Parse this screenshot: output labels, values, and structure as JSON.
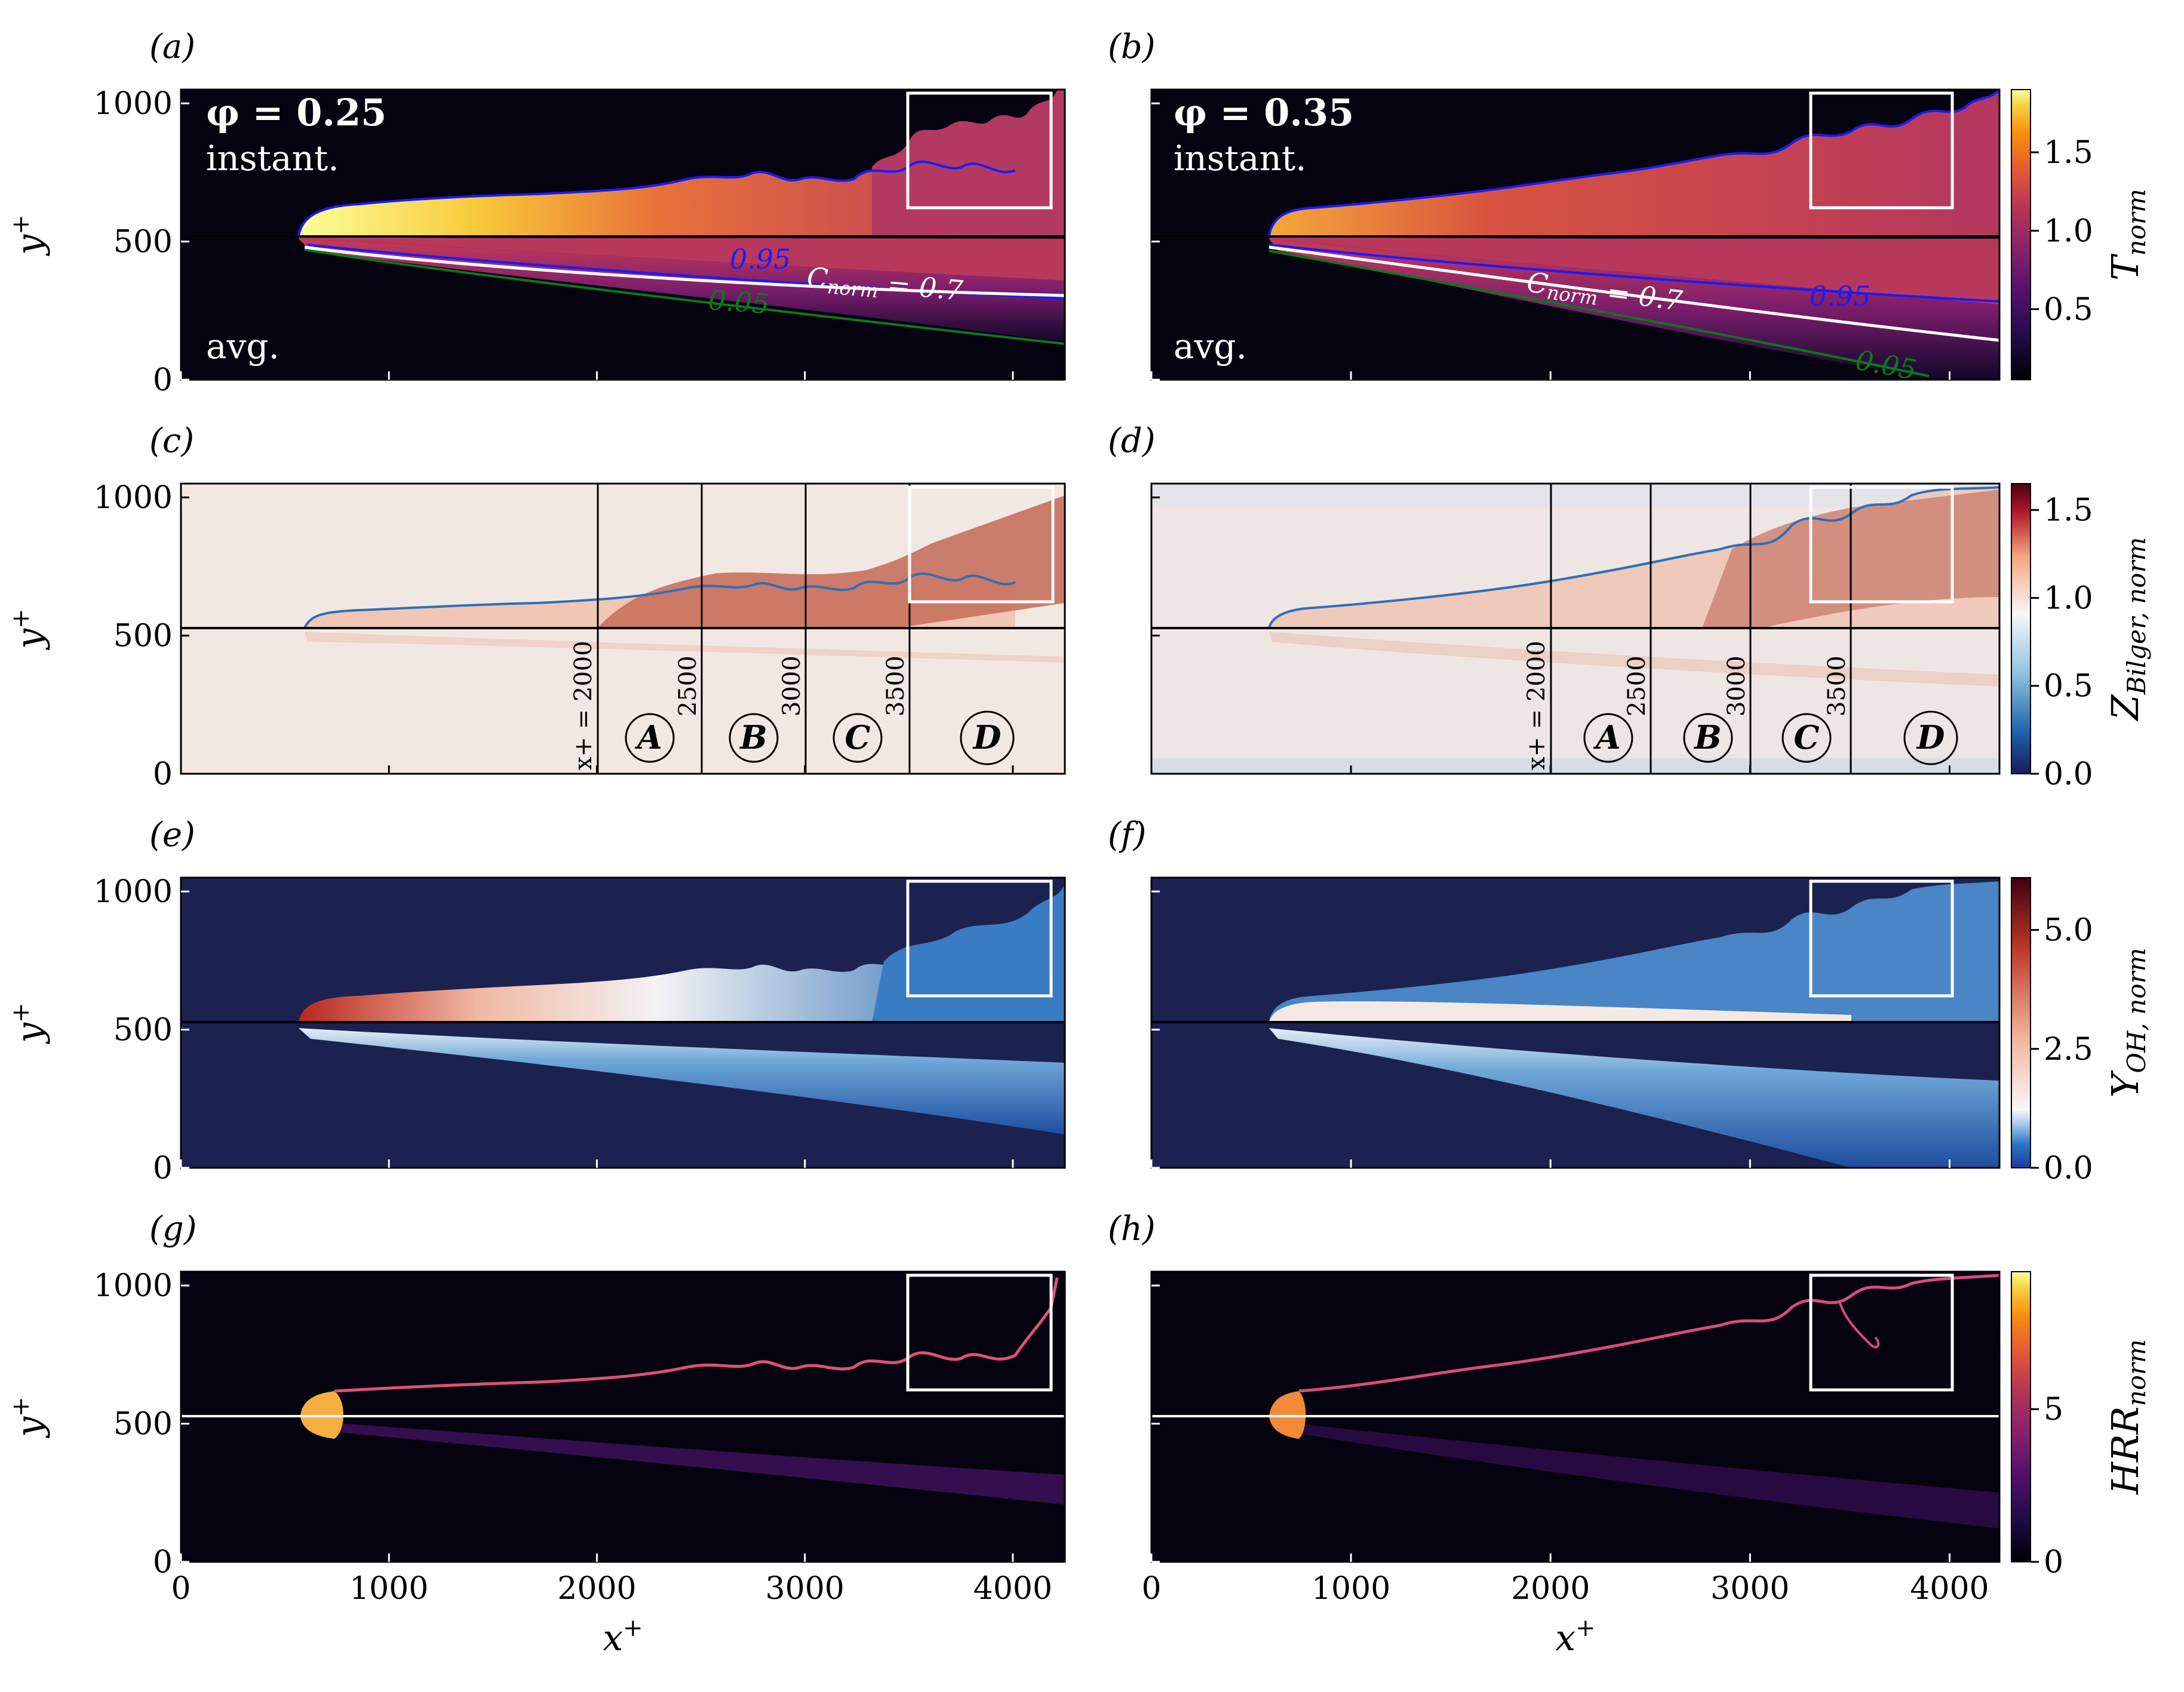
{
  "chart_data": [
    {
      "type": "heatmap",
      "panel": "(a)",
      "annotations": [
        "φ = 0.25",
        "instant.",
        "avg.",
        "0.95",
        "0.05",
        "C_norm = 0.7"
      ],
      "x": {
        "ticks": [
          0,
          1000,
          2000,
          3000,
          4000
        ],
        "lim": [
          0,
          4250
        ]
      },
      "y": {
        "ticks": [
          0,
          500,
          1000
        ],
        "lim": [
          0,
          1050
        ]
      },
      "ylabel": "y+"
    },
    {
      "type": "heatmap",
      "panel": "(b)",
      "annotations": [
        "φ = 0.35",
        "instant.",
        "avg.",
        "C_norm = 0.7",
        "0.95",
        "0.05"
      ],
      "x": {
        "ticks": [
          0,
          1000,
          2000,
          3000,
          4000
        ],
        "lim": [
          0,
          4250
        ]
      },
      "y": {
        "ticks": [
          0,
          500,
          1000
        ],
        "lim": [
          0,
          1050
        ]
      }
    },
    {
      "type": "heatmap",
      "panel": "(c)",
      "vlines": [
        2000,
        2500,
        3000,
        3500
      ],
      "regions": [
        "A",
        "B",
        "C",
        "D"
      ],
      "x": {
        "ticks": [
          0,
          1000,
          2000,
          3000,
          4000
        ],
        "lim": [
          0,
          4250
        ]
      },
      "y": {
        "ticks": [
          0,
          500,
          1000
        ],
        "lim": [
          0,
          1050
        ]
      },
      "ylabel": "y+"
    },
    {
      "type": "heatmap",
      "panel": "(d)",
      "vlines": [
        2000,
        2500,
        3000,
        3500
      ],
      "regions": [
        "A",
        "B",
        "C",
        "D"
      ],
      "x": {
        "ticks": [
          0,
          1000,
          2000,
          3000,
          4000
        ],
        "lim": [
          0,
          4250
        ]
      },
      "y": {
        "ticks": [
          0,
          500,
          1000
        ],
        "lim": [
          0,
          1050
        ]
      }
    },
    {
      "type": "heatmap",
      "panel": "(e)",
      "x": {
        "ticks": [
          0,
          1000,
          2000,
          3000,
          4000
        ],
        "lim": [
          0,
          4250
        ]
      },
      "y": {
        "ticks": [
          0,
          500,
          1000
        ],
        "lim": [
          0,
          1050
        ]
      },
      "ylabel": "y+"
    },
    {
      "type": "heatmap",
      "panel": "(f)",
      "x": {
        "ticks": [
          0,
          1000,
          2000,
          3000,
          4000
        ],
        "lim": [
          0,
          4250
        ]
      },
      "y": {
        "ticks": [
          0,
          500,
          1000
        ],
        "lim": [
          0,
          1050
        ]
      }
    },
    {
      "type": "heatmap",
      "panel": "(g)",
      "x": {
        "ticks": [
          0,
          1000,
          2000,
          3000,
          4000
        ],
        "lim": [
          0,
          4250
        ]
      },
      "y": {
        "ticks": [
          0,
          500,
          1000
        ],
        "lim": [
          0,
          1050
        ]
      },
      "xlabel": "x+",
      "ylabel": "y+"
    },
    {
      "type": "heatmap",
      "panel": "(h)",
      "x": {
        "ticks": [
          0,
          1000,
          2000,
          3000,
          4000
        ],
        "lim": [
          0,
          4250
        ]
      },
      "y": {
        "ticks": [
          0,
          500,
          1000
        ],
        "lim": [
          0,
          1050
        ]
      },
      "xlabel": "x+"
    }
  ],
  "labels": {
    "a": "(a)",
    "b": "(b)",
    "c": "(c)",
    "d": "(d)",
    "e": "(e)",
    "f": "(f)",
    "g": "(g)",
    "h": "(h)",
    "phi_a": "φ = 0.25",
    "phi_b": "φ = 0.35",
    "instant": "instant.",
    "avg": "avg.",
    "c095": "0.95",
    "c005": "0.05",
    "c07": "C",
    "c07_sub": "norm",
    "c07_rest": " = 0.7",
    "ylabel": "y",
    "ylabel_sup": "+",
    "xlabel": "x",
    "xlabel_sup": "+",
    "xline_2000": "x+ = 2000",
    "xline_2500": "2500",
    "xline_3000": "3000",
    "xline_3500": "3500",
    "regions": [
      "A",
      "B",
      "C",
      "D"
    ]
  },
  "axes": {
    "xticks": [
      "0",
      "1000",
      "2000",
      "3000",
      "4000"
    ],
    "yticks": [
      "0",
      "500",
      "1000"
    ]
  },
  "colorbars": [
    {
      "var": "T",
      "sub": "norm",
      "ticks": [
        "0.5",
        "1.0",
        "1.5"
      ],
      "tick_values": [
        0.5,
        1.0,
        1.5
      ],
      "range": [
        0.05,
        1.9
      ],
      "colormap": "inferno"
    },
    {
      "var": "Z",
      "sub": "Bilger, norm",
      "ticks": [
        "0.0",
        "0.5",
        "1.0",
        "1.5"
      ],
      "tick_values": [
        0.0,
        0.5,
        1.0,
        1.5
      ],
      "range": [
        0.0,
        1.65
      ],
      "colormap": "RdBu_r"
    },
    {
      "var": "Y",
      "sub": "OH, norm",
      "ticks": [
        "0.0",
        "2.5",
        "5.0"
      ],
      "tick_values": [
        0.0,
        2.5,
        5.0
      ],
      "range": [
        0.0,
        6.1
      ],
      "colormap": "RdBu_r"
    },
    {
      "var": "HRR",
      "sub": "norm",
      "ticks": [
        "0",
        "5"
      ],
      "tick_values": [
        0,
        5
      ],
      "range": [
        0,
        9.5
      ],
      "colormap": "inferno"
    }
  ],
  "colors": {
    "dark": "#05030f",
    "navy": "#1b2250",
    "pale": "#f2eae6",
    "contour_blue": "#1a1aff",
    "contour_green": "#0a7a1a",
    "white": "#ffffff"
  }
}
